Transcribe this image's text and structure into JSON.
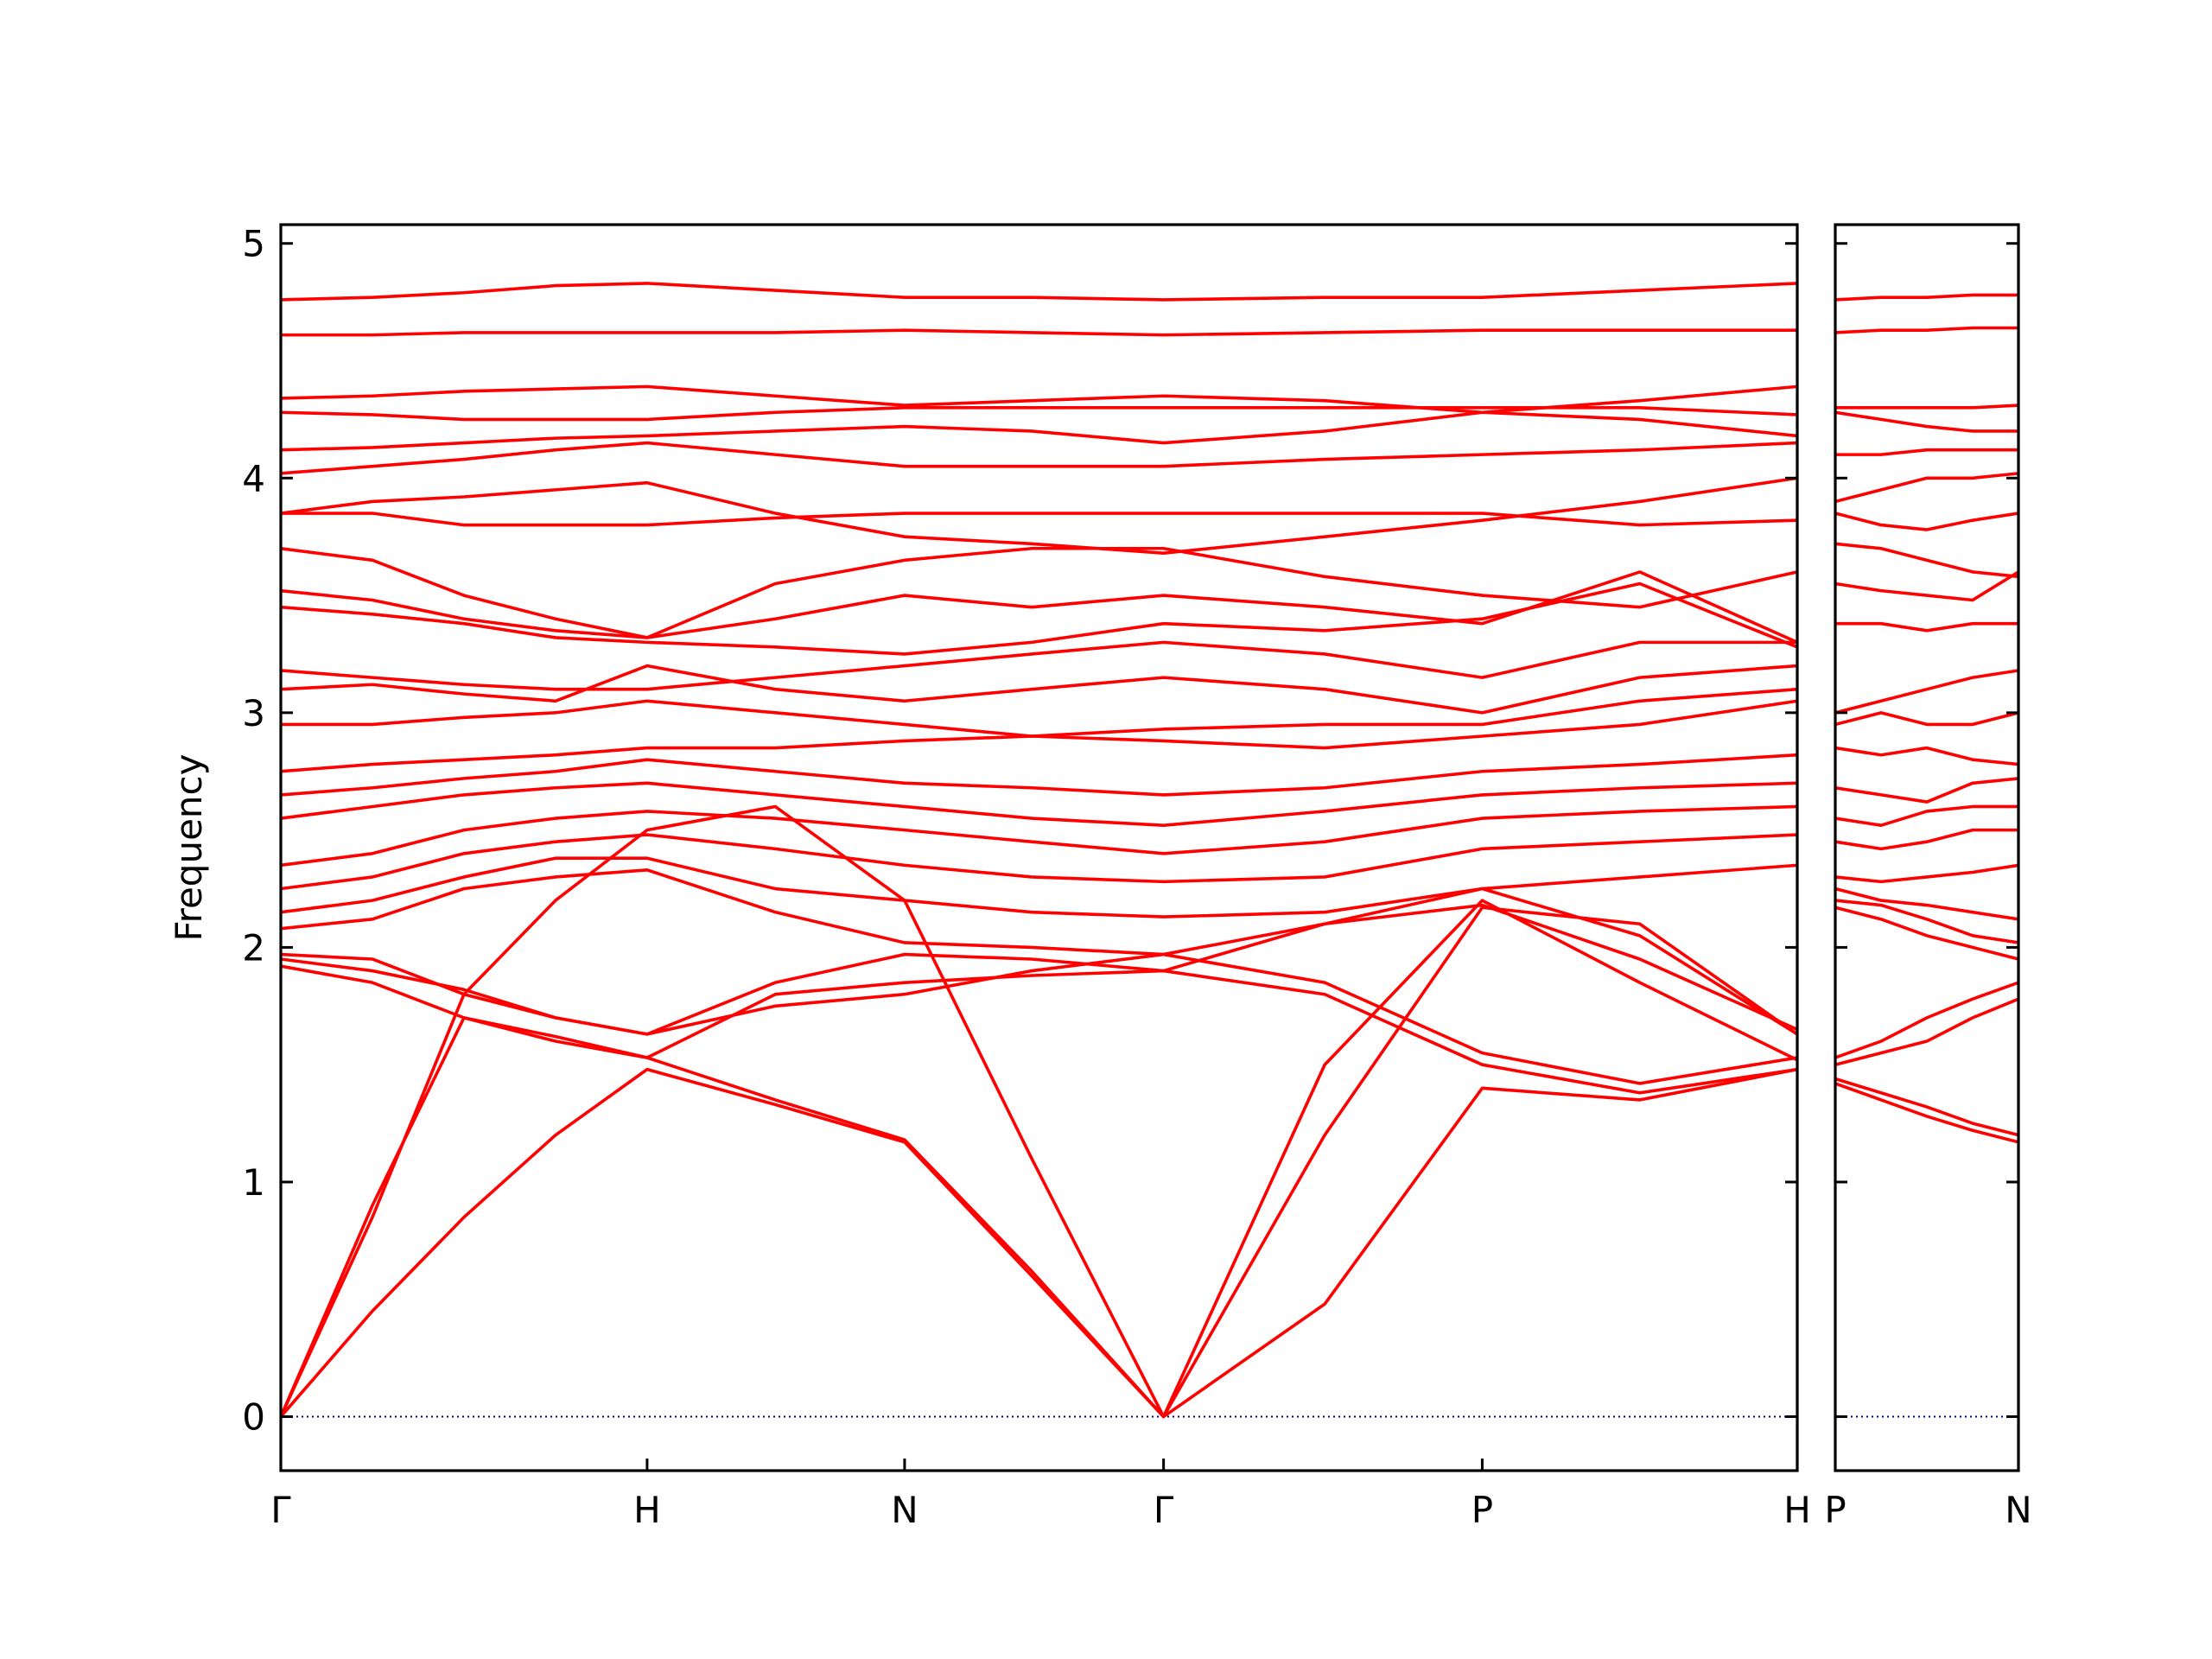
{
  "chart_data": [
    {
      "type": "line",
      "ylabel": "Frequency",
      "color": "#ff0000",
      "zero_line_color": "#00008b",
      "x": [
        0,
        0.25,
        0.5,
        0.75,
        1,
        1.35,
        1.703,
        2.05,
        2.41,
        2.85,
        3.28,
        3.71,
        4.14
      ],
      "xlim": [
        0,
        4.14
      ],
      "xticks": [
        {
          "value": 0,
          "label": "Γ"
        },
        {
          "value": 1,
          "label": "H"
        },
        {
          "value": 1.703,
          "label": "N"
        },
        {
          "value": 2.41,
          "label": "Γ"
        },
        {
          "value": 3.28,
          "label": "P"
        },
        {
          "value": 4.14,
          "label": "H"
        }
      ],
      "ylim": [
        -0.23,
        5.08
      ],
      "yticks": [
        0,
        1,
        2,
        3,
        4,
        5
      ],
      "series": [
        {
          "values": [
            0,
            0.45,
            0.85,
            1.2,
            1.48,
            1.33,
            1.17,
            0.6,
            0,
            0.48,
            1.4,
            1.35,
            1.48
          ]
        },
        {
          "values": [
            0,
            0.9,
            1.7,
            1.62,
            1.53,
            1.35,
            1.18,
            0.62,
            0,
            1.5,
            2.2,
            1.85,
            1.52
          ]
        },
        {
          "values": [
            0,
            0.85,
            1.8,
            2.2,
            2.5,
            2.6,
            2.2,
            1.1,
            0,
            1.2,
            2.17,
            2.1,
            1.63
          ]
        },
        {
          "values": [
            1.92,
            1.85,
            1.7,
            1.6,
            1.53,
            1.8,
            1.85,
            1.88,
            1.9,
            1.8,
            1.5,
            1.38,
            1.48
          ]
        },
        {
          "values": [
            1.95,
            1.9,
            1.82,
            1.7,
            1.63,
            1.75,
            1.8,
            1.9,
            1.97,
            1.85,
            1.55,
            1.42,
            1.53
          ]
        },
        {
          "values": [
            1.97,
            1.95,
            1.8,
            1.7,
            1.63,
            1.85,
            1.97,
            1.95,
            1.9,
            2.1,
            2.25,
            2.05,
            1.63
          ]
        },
        {
          "values": [
            2.08,
            2.12,
            2.25,
            2.3,
            2.33,
            2.15,
            2.02,
            2,
            1.97,
            2.1,
            2.18,
            1.95,
            1.65
          ]
        },
        {
          "values": [
            2.15,
            2.2,
            2.3,
            2.38,
            2.38,
            2.25,
            2.2,
            2.15,
            2.13,
            2.15,
            2.25,
            2.3,
            2.35
          ]
        },
        {
          "values": [
            2.25,
            2.3,
            2.4,
            2.45,
            2.48,
            2.42,
            2.35,
            2.3,
            2.28,
            2.3,
            2.42,
            2.45,
            2.48
          ]
        },
        {
          "values": [
            2.35,
            2.4,
            2.5,
            2.55,
            2.58,
            2.55,
            2.5,
            2.45,
            2.4,
            2.45,
            2.55,
            2.58,
            2.6
          ]
        },
        {
          "values": [
            2.55,
            2.6,
            2.65,
            2.68,
            2.7,
            2.65,
            2.6,
            2.55,
            2.52,
            2.58,
            2.65,
            2.68,
            2.7
          ]
        },
        {
          "values": [
            2.65,
            2.68,
            2.72,
            2.75,
            2.8,
            2.75,
            2.7,
            2.68,
            2.65,
            2.68,
            2.75,
            2.78,
            2.82
          ]
        },
        {
          "values": [
            2.75,
            2.78,
            2.8,
            2.82,
            2.85,
            2.85,
            2.88,
            2.9,
            2.88,
            2.85,
            2.9,
            2.95,
            3.05
          ]
        },
        {
          "values": [
            2.95,
            2.95,
            2.98,
            3,
            3.05,
            3,
            2.95,
            2.9,
            2.93,
            2.95,
            2.95,
            3.05,
            3.1
          ]
        },
        {
          "values": [
            3.1,
            3.12,
            3.08,
            3.05,
            3.2,
            3.1,
            3.05,
            3.1,
            3.15,
            3.1,
            3,
            3.15,
            3.2
          ]
        },
        {
          "values": [
            3.18,
            3.15,
            3.12,
            3.1,
            3.1,
            3.15,
            3.2,
            3.25,
            3.3,
            3.25,
            3.15,
            3.3,
            3.3
          ]
        },
        {
          "values": [
            3.45,
            3.42,
            3.38,
            3.32,
            3.3,
            3.28,
            3.25,
            3.3,
            3.38,
            3.35,
            3.4,
            3.55,
            3.28
          ]
        },
        {
          "values": [
            3.52,
            3.48,
            3.4,
            3.35,
            3.32,
            3.4,
            3.5,
            3.45,
            3.5,
            3.45,
            3.38,
            3.6,
            3.3
          ]
        },
        {
          "values": [
            3.7,
            3.65,
            3.5,
            3.4,
            3.32,
            3.55,
            3.65,
            3.7,
            3.7,
            3.58,
            3.5,
            3.45,
            3.6
          ]
        },
        {
          "values": [
            3.85,
            3.85,
            3.8,
            3.8,
            3.8,
            3.83,
            3.85,
            3.85,
            3.85,
            3.85,
            3.85,
            3.8,
            3.82
          ]
        },
        {
          "values": [
            3.85,
            3.9,
            3.92,
            3.95,
            3.98,
            3.85,
            3.75,
            3.72,
            3.68,
            3.75,
            3.82,
            3.9,
            4
          ]
        },
        {
          "values": [
            4.02,
            4.05,
            4.08,
            4.12,
            4.15,
            4.1,
            4.05,
            4.05,
            4.05,
            4.08,
            4.1,
            4.12,
            4.15
          ]
        },
        {
          "values": [
            4.12,
            4.13,
            4.15,
            4.17,
            4.18,
            4.2,
            4.22,
            4.2,
            4.15,
            4.2,
            4.28,
            4.25,
            4.18
          ]
        },
        {
          "values": [
            4.28,
            4.27,
            4.25,
            4.25,
            4.25,
            4.28,
            4.3,
            4.3,
            4.3,
            4.3,
            4.3,
            4.3,
            4.27
          ]
        },
        {
          "values": [
            4.34,
            4.35,
            4.37,
            4.38,
            4.39,
            4.35,
            4.31,
            4.33,
            4.35,
            4.33,
            4.28,
            4.33,
            4.39
          ]
        },
        {
          "values": [
            4.61,
            4.61,
            4.62,
            4.62,
            4.62,
            4.62,
            4.63,
            4.62,
            4.61,
            4.62,
            4.63,
            4.63,
            4.63
          ]
        },
        {
          "values": [
            4.76,
            4.77,
            4.79,
            4.82,
            4.83,
            4.8,
            4.77,
            4.77,
            4.76,
            4.77,
            4.77,
            4.8,
            4.83
          ]
        }
      ]
    },
    {
      "type": "line",
      "color": "#ff0000",
      "zero_line_color": "#00008b",
      "show_ytick_labels": false,
      "x": [
        0,
        0.125,
        0.25,
        0.375,
        0.5
      ],
      "xlim": [
        0,
        0.5
      ],
      "xticks": [
        {
          "value": 0,
          "label": "P"
        },
        {
          "value": 0.5,
          "label": "N"
        }
      ],
      "ylim": [
        -0.23,
        5.08
      ],
      "yticks": [
        0,
        1,
        2,
        3,
        4,
        5
      ],
      "series": [
        {
          "values": [
            1.42,
            1.35,
            1.28,
            1.22,
            1.17
          ]
        },
        {
          "values": [
            1.44,
            1.38,
            1.32,
            1.25,
            1.2
          ]
        },
        {
          "values": [
            1.5,
            1.55,
            1.6,
            1.7,
            1.78
          ]
        },
        {
          "values": [
            1.53,
            1.6,
            1.7,
            1.78,
            1.85
          ]
        },
        {
          "values": [
            2.17,
            2.12,
            2.05,
            2,
            1.95
          ]
        },
        {
          "values": [
            2.2,
            2.18,
            2.12,
            2.05,
            2.02
          ]
        },
        {
          "values": [
            2.25,
            2.2,
            2.18,
            2.15,
            2.12
          ]
        },
        {
          "values": [
            2.3,
            2.28,
            2.3,
            2.32,
            2.35
          ]
        },
        {
          "values": [
            2.45,
            2.42,
            2.45,
            2.5,
            2.5
          ]
        },
        {
          "values": [
            2.55,
            2.52,
            2.58,
            2.6,
            2.6
          ]
        },
        {
          "values": [
            2.68,
            2.65,
            2.62,
            2.7,
            2.72
          ]
        },
        {
          "values": [
            2.85,
            2.82,
            2.85,
            2.8,
            2.78
          ]
        },
        {
          "values": [
            2.95,
            3,
            2.95,
            2.95,
            3
          ]
        },
        {
          "values": [
            3,
            3.05,
            3.1,
            3.15,
            3.18
          ]
        },
        {
          "values": [
            3.38,
            3.38,
            3.35,
            3.38,
            3.38
          ]
        },
        {
          "values": [
            3.55,
            3.52,
            3.5,
            3.48,
            3.6
          ]
        },
        {
          "values": [
            3.72,
            3.7,
            3.65,
            3.6,
            3.58
          ]
        },
        {
          "values": [
            3.85,
            3.8,
            3.78,
            3.82,
            3.85
          ]
        },
        {
          "values": [
            3.9,
            3.95,
            4,
            4,
            4.02
          ]
        },
        {
          "values": [
            4.1,
            4.1,
            4.12,
            4.12,
            4.12
          ]
        },
        {
          "values": [
            4.28,
            4.25,
            4.22,
            4.2,
            4.2
          ]
        },
        {
          "values": [
            4.3,
            4.3,
            4.3,
            4.3,
            4.31
          ]
        },
        {
          "values": [
            4.62,
            4.63,
            4.63,
            4.64,
            4.64
          ]
        },
        {
          "values": [
            4.76,
            4.77,
            4.77,
            4.78,
            4.78
          ]
        }
      ]
    }
  ]
}
